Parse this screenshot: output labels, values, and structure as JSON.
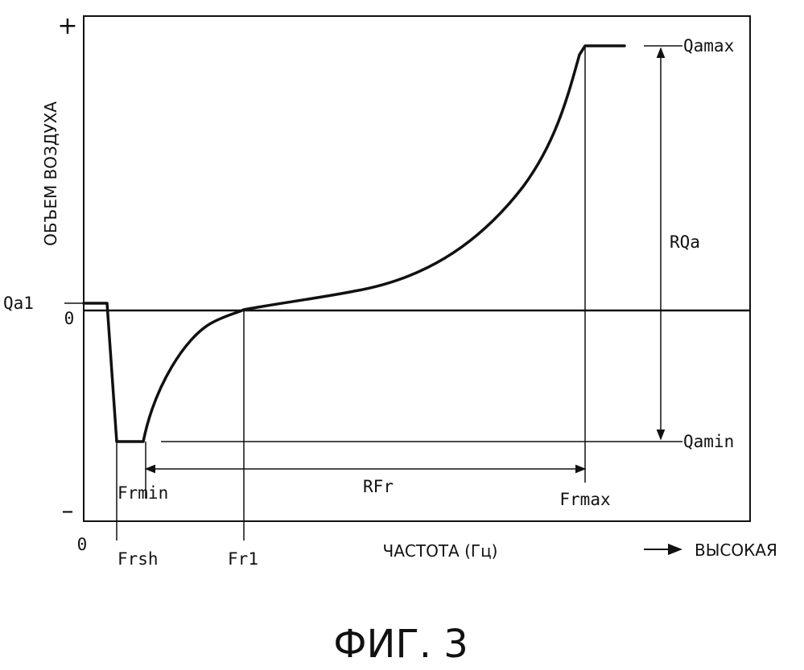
{
  "figure": {
    "caption": "ФИГ. 3",
    "y_axis_label": "ОБЪЕМ ВОЗДУХА",
    "x_axis_label": "ЧАСТОТА (Гц)",
    "x_direction_label": "ВЫСОКАЯ",
    "y_plus": "+",
    "y_minus": "–",
    "origin_label": "0",
    "zero_label": "0"
  },
  "labels": {
    "qa1": "Qa1",
    "qamax": "Qamax",
    "qamin": "Qamin",
    "rqa": "RQa",
    "rfr": "RFr",
    "frmin": "Frmin",
    "frmax": "Frmax",
    "frsh": "Frsh",
    "fr1": "Fr1"
  },
  "colors": {
    "ink": "#111111",
    "background": "#ffffff"
  }
}
